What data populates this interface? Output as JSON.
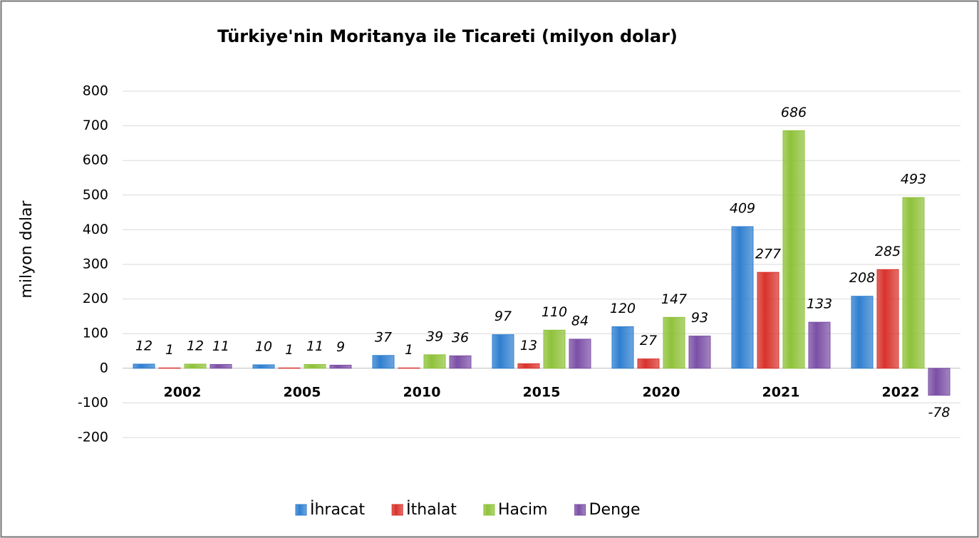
{
  "chart_data": {
    "type": "bar",
    "title": "Türkiye'nin Moritanya ile Ticareti (milyon dolar)",
    "y_label": "milyon dolar",
    "categories": [
      "2002",
      "2005",
      "2010",
      "2015",
      "2020",
      "2021",
      "2022"
    ],
    "series": [
      {
        "name": "İhracat",
        "color": "#2f7fd0",
        "values": [
          12,
          10,
          37,
          97,
          120,
          409,
          208
        ]
      },
      {
        "name": "İthalat",
        "color": "#d9322c",
        "values": [
          1,
          1,
          1,
          13,
          27,
          277,
          285
        ]
      },
      {
        "name": "Hacim",
        "color": "#8fc23a",
        "values": [
          12,
          11,
          39,
          110,
          147,
          686,
          493
        ]
      },
      {
        "name": "Denge",
        "color": "#7b4fa6",
        "values": [
          11,
          9,
          36,
          84,
          93,
          133,
          -78
        ]
      }
    ],
    "ylim": [
      -200,
      800
    ],
    "yticks": [
      -200,
      -100,
      0,
      100,
      200,
      300,
      400,
      500,
      600,
      700,
      800
    ],
    "grid": true,
    "legend": "bottom"
  }
}
